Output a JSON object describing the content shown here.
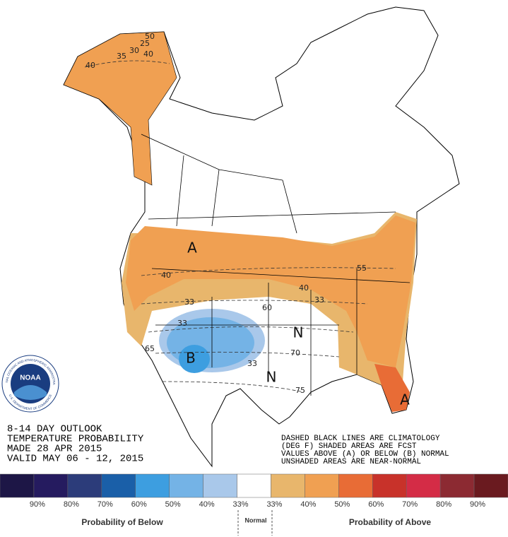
{
  "header_lines": [
    "8-14 DAY OUTLOOK",
    "TEMPERATURE PROBABILITY",
    "MADE  28 APR 2015",
    "VALID  MAY 06 - 12, 2015"
  ],
  "notes": [
    "DASHED BLACK LINES ARE CLIMATOLOGY",
    "(DEG F) SHADED AREAS ARE FCST",
    "VALUES ABOVE (A) OR BELOW (B) NORMAL",
    "UNSHADED AREAS ARE NEAR-NORMAL"
  ],
  "map_labels": [
    "A",
    "40",
    "40",
    "33",
    "33",
    "60",
    "33",
    "N",
    "B",
    "33",
    "N",
    "65",
    "70",
    "75",
    "A",
    "25",
    "30",
    "35",
    "40",
    "40",
    "50",
    "55"
  ],
  "logo": {
    "text": "NOAA",
    "ring_top": "NATIONAL OCEANIC AND ATMOSPHERIC ADMINISTRATION",
    "ring_bottom": "U.S. DEPARTMENT OF COMMERCE"
  },
  "legend": {
    "colors": [
      "#1d1646",
      "#251b5f",
      "#2c3c7a",
      "#1a5fa8",
      "#3d9ee0",
      "#74b3e6",
      "#a9c8ea",
      "#ffffff",
      "#e8b66c",
      "#f0a052",
      "#e86c36",
      "#c8322a",
      "#d42c46",
      "#8c2a32",
      "#6a1a1f"
    ],
    "labels": [
      "90%",
      "80%",
      "70%",
      "60%",
      "50%",
      "40%",
      "33%",
      "33%",
      "40%",
      "50%",
      "60%",
      "70%",
      "80%",
      "90%"
    ],
    "below_title": "Probability of Below",
    "normal_title": "Normal",
    "above_title": "Probability of Above"
  }
}
